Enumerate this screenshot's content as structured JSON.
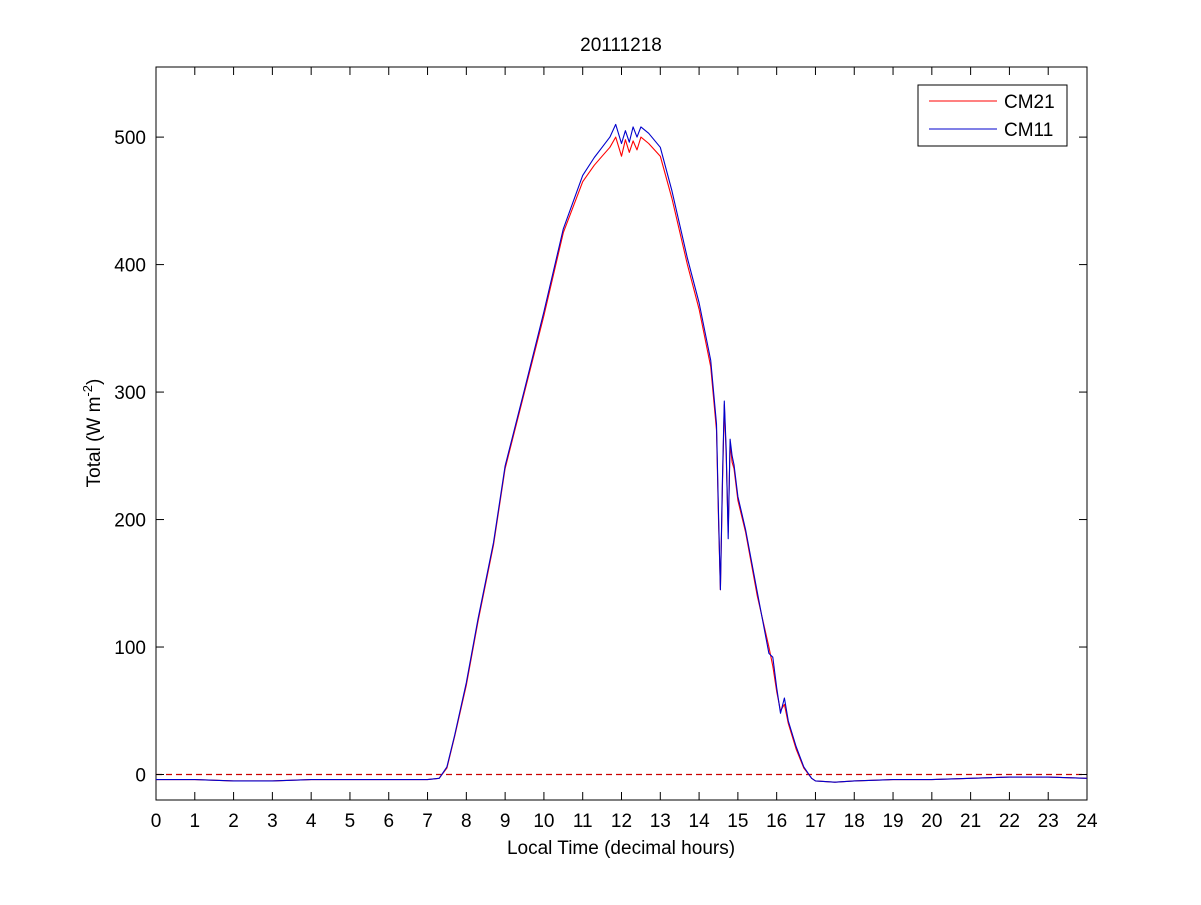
{
  "chart_data": {
    "type": "line",
    "title": "20111218",
    "xlabel": "Local Time (decimal hours)",
    "ylabel": {
      "main": "Total (W m",
      "sup": "-2",
      "close": ")"
    },
    "xlim": [
      0,
      24
    ],
    "ylim": [
      -20,
      555
    ],
    "xticks": [
      0,
      1,
      2,
      3,
      4,
      5,
      6,
      7,
      8,
      9,
      10,
      11,
      12,
      13,
      14,
      15,
      16,
      17,
      18,
      19,
      20,
      21,
      22,
      23,
      24
    ],
    "yticks": [
      0,
      100,
      200,
      300,
      400,
      500
    ],
    "grid": false,
    "legend": "top-right",
    "reference_line": {
      "y": 0,
      "style": "dashed",
      "color": "#cc0000"
    },
    "series": [
      {
        "name": "CM21",
        "color": "#ff0000",
        "x": [
          0,
          1,
          2,
          3,
          4,
          5,
          6,
          7,
          7.3,
          7.5,
          7.7,
          8,
          8.3,
          8.7,
          9,
          9.5,
          10,
          10.5,
          11,
          11.3,
          11.5,
          11.7,
          11.85,
          12,
          12.1,
          12.2,
          12.3,
          12.4,
          12.5,
          12.7,
          13,
          13.3,
          13.7,
          14,
          14.3,
          14.45,
          14.5,
          14.55,
          14.6,
          14.65,
          14.7,
          14.75,
          14.8,
          14.85,
          14.9,
          15,
          15.2,
          15.5,
          15.8,
          15.9,
          16,
          16.1,
          16.2,
          16.3,
          16.5,
          16.7,
          16.9,
          17,
          17.5,
          18,
          19,
          20,
          21,
          22,
          23,
          24
        ],
        "y": [
          -4,
          -4,
          -5,
          -5,
          -4,
          -4,
          -4,
          -4,
          -3,
          5,
          30,
          70,
          120,
          180,
          240,
          300,
          360,
          425,
          465,
          478,
          485,
          492,
          500,
          485,
          498,
          488,
          497,
          490,
          500,
          495,
          485,
          452,
          400,
          365,
          320,
          270,
          200,
          145,
          225,
          290,
          250,
          190,
          260,
          245,
          240,
          215,
          190,
          140,
          100,
          85,
          65,
          50,
          55,
          40,
          20,
          5,
          -3,
          -5,
          -6,
          -5,
          -4,
          -4,
          -3,
          -2,
          -2,
          -3
        ]
      },
      {
        "name": "CM11",
        "color": "#0000cc",
        "x": [
          0,
          1,
          2,
          3,
          4,
          5,
          6,
          7,
          7.3,
          7.5,
          7.7,
          8,
          8.3,
          8.7,
          9,
          9.5,
          10,
          10.5,
          11,
          11.3,
          11.5,
          11.7,
          11.85,
          12,
          12.1,
          12.2,
          12.3,
          12.4,
          12.5,
          12.7,
          13,
          13.3,
          13.7,
          14,
          14.3,
          14.45,
          14.5,
          14.55,
          14.6,
          14.65,
          14.7,
          14.75,
          14.8,
          14.85,
          14.9,
          15,
          15.2,
          15.5,
          15.8,
          15.9,
          16,
          16.1,
          16.2,
          16.3,
          16.5,
          16.7,
          16.9,
          17,
          17.5,
          18,
          19,
          20,
          21,
          22,
          23,
          24
        ],
        "y": [
          -4,
          -4,
          -5,
          -5,
          -4,
          -4,
          -4,
          -4,
          -3,
          6,
          31,
          72,
          122,
          182,
          242,
          302,
          363,
          428,
          470,
          484,
          492,
          500,
          510,
          495,
          505,
          496,
          508,
          500,
          508,
          503,
          492,
          458,
          405,
          370,
          325,
          275,
          205,
          145,
          230,
          293,
          255,
          185,
          263,
          250,
          243,
          218,
          192,
          143,
          95,
          92,
          68,
          48,
          60,
          42,
          22,
          6,
          -3,
          -5,
          -6,
          -5,
          -4,
          -4,
          -3,
          -2,
          -2,
          -3
        ]
      }
    ]
  }
}
